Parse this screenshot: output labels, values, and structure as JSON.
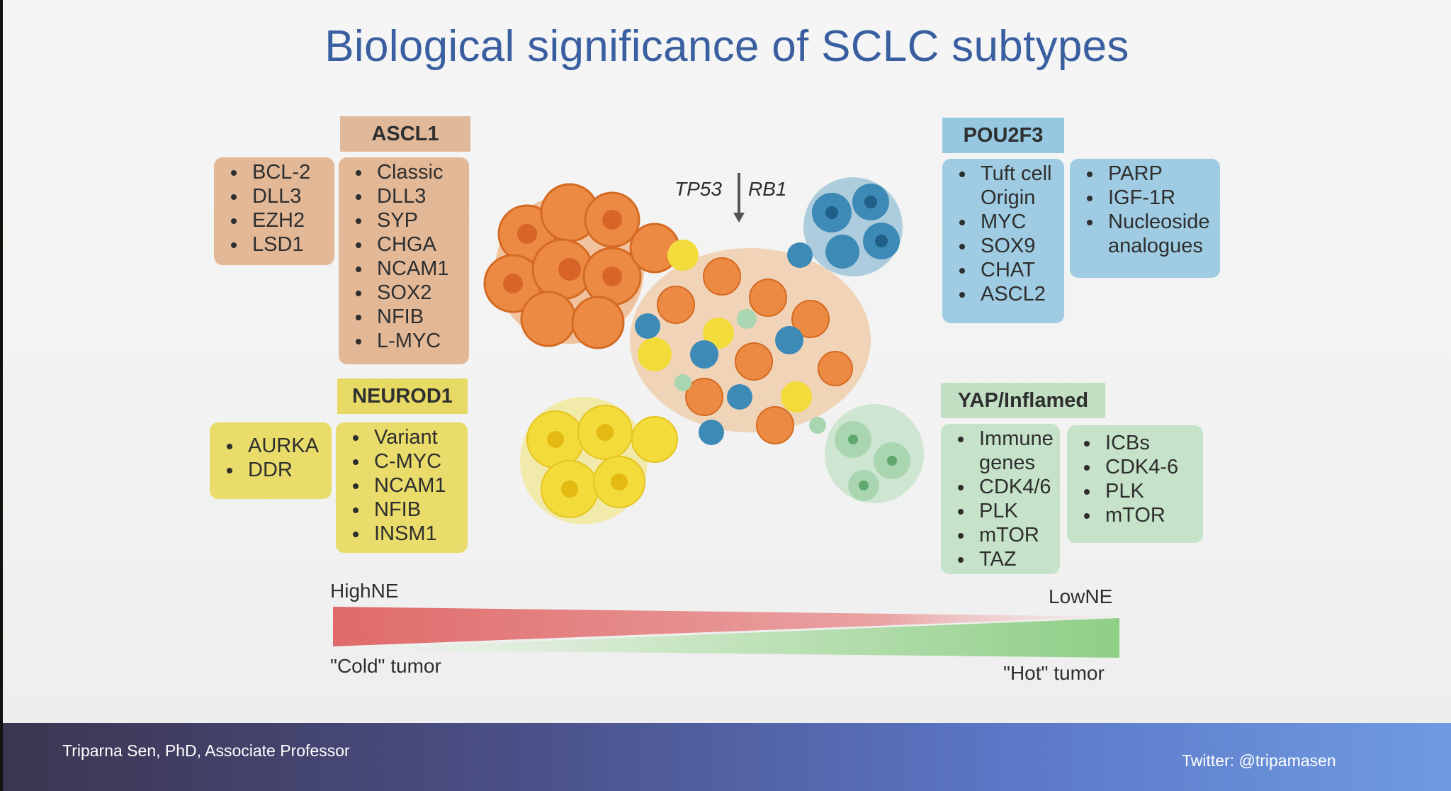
{
  "slide": {
    "title": "Biological significance of SCLC subtypes"
  },
  "ascl1": {
    "header": "ASCL1",
    "targets": [
      "BCL-2",
      "DLL3",
      "EZH2",
      "LSD1"
    ],
    "markers": [
      "Classic",
      "DLL3",
      "SYP",
      "CHGA",
      "NCAM1",
      "SOX2",
      "NFIB",
      "L-MYC"
    ]
  },
  "neurod1": {
    "header": "NEUROD1",
    "targets": [
      "AURKA",
      "DDR"
    ],
    "markers": [
      "Variant",
      "C-MYC",
      "NCAM1",
      "NFIB",
      "INSM1"
    ]
  },
  "pou2f3": {
    "header": "POU2F3",
    "markers": [
      "Tuft cell Origin",
      "MYC",
      "SOX9",
      "CHAT",
      "ASCL2"
    ],
    "targets": [
      "PARP",
      "IGF-1R",
      "Nucleoside analogues"
    ]
  },
  "yap": {
    "header": "YAP/Inflamed",
    "markers": [
      "Immune genes",
      "CDK4/6",
      "PLK",
      "mTOR",
      "TAZ"
    ],
    "targets": [
      "ICBs",
      "CDK4-6",
      "PLK",
      "mTOR"
    ]
  },
  "center": {
    "gene1": "TP53",
    "gene2": "RB1"
  },
  "gradient": {
    "high_label": "HighNE",
    "low_label": "LowNE",
    "cold_label": "\"Cold\" tumor",
    "hot_label": "\"Hot\" tumor"
  },
  "footer": {
    "presenter": "Triparna Sen, PhD, Associate Professor",
    "twitter": "Twitter: @tripamasen"
  },
  "colors": {
    "title": "#3a5fa0",
    "ascl1": "#e3b897",
    "neurod1": "#e9dc6b",
    "pou2f3": "#9fcce3",
    "yap": "#c6e2c9",
    "high_ne": "#e06a6a",
    "low_ne": "#8fcf86"
  }
}
